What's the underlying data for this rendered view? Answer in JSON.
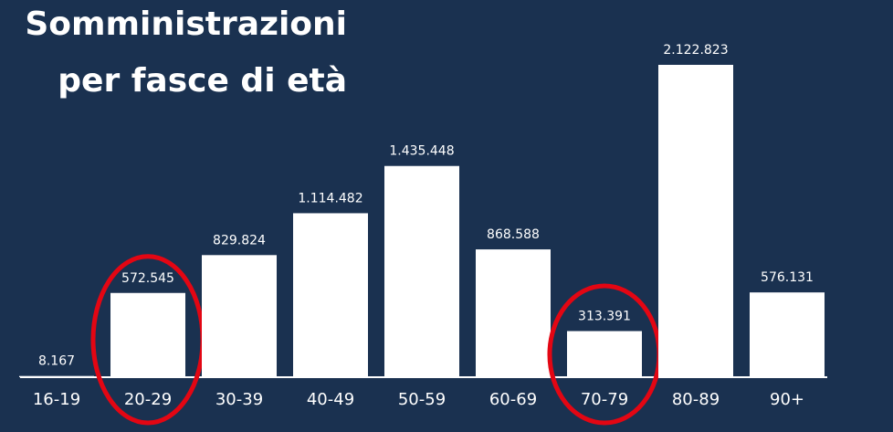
{
  "chart_data": {
    "type": "bar",
    "title": [
      "Somministrazioni",
      "per fasce di età"
    ],
    "categories": [
      "16-19",
      "20-29",
      "30-39",
      "40-49",
      "50-59",
      "60-69",
      "70-79",
      "80-89",
      "90+"
    ],
    "values": [
      8167,
      572545,
      829824,
      1114482,
      1435448,
      868588,
      313391,
      2122823,
      576131
    ],
    "value_labels": [
      "8.167",
      "572.545",
      "829.824",
      "1.114.482",
      "1.435.448",
      "868.588",
      "313.391",
      "2.122.823",
      "576.131"
    ],
    "color": "#ffffff",
    "highlight": [
      "20-29",
      "70-79"
    ],
    "highlight_color": "#e30613"
  }
}
